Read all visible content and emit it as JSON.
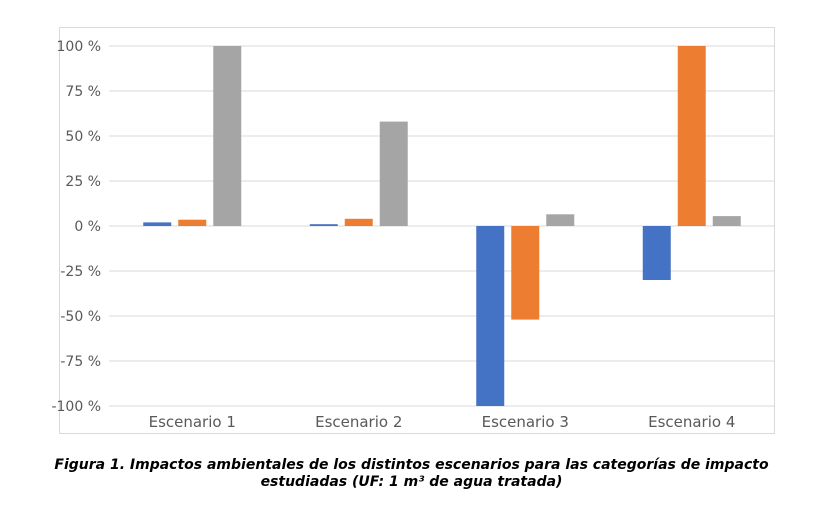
{
  "chart_data": {
    "type": "bar",
    "categories": [
      "Escenario 1",
      "Escenario 2",
      "Escenario 3",
      "Escenario 4"
    ],
    "series": [
      {
        "color": "#4472c4",
        "values": [
          2,
          1,
          -100,
          -30
        ]
      },
      {
        "color": "#ed7d31",
        "values": [
          3.5,
          4,
          -52,
          100
        ]
      },
      {
        "color": "#a5a5a5",
        "values": [
          100,
          58,
          6.5,
          5.5
        ]
      }
    ],
    "ylim": [
      -100,
      100
    ],
    "yticks": [
      100,
      75,
      50,
      25,
      0,
      -25,
      -50,
      -75,
      -100
    ],
    "ytick_labels": [
      "100 %",
      "75 %",
      "50 %",
      "25 %",
      "0 %",
      "-25 %",
      "-50 %",
      "-75 %",
      "-100 %"
    ],
    "grid": true
  },
  "caption": {
    "line1": "Figura 1. Impactos ambientales de los distintos escenarios para las categorías de impacto",
    "line2": "estudiadas (UF: 1 m³ de agua tratada)"
  }
}
